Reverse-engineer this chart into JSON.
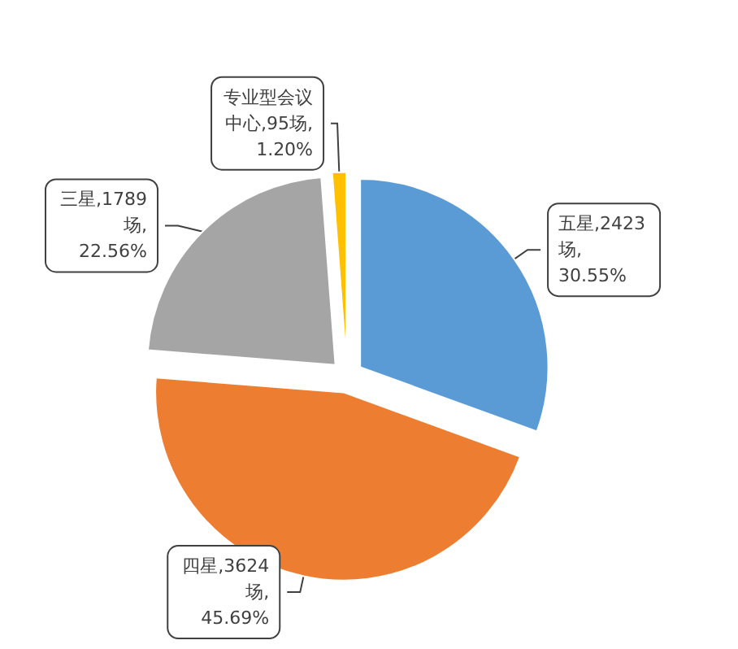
{
  "chart_data": {
    "type": "pie",
    "categories": [
      "五星",
      "四星",
      "三星",
      "专业型会议中心"
    ],
    "values": [
      2423,
      3624,
      1789,
      95
    ],
    "colors": [
      "#5b9bd5",
      "#ed7d31",
      "#a5a5a5",
      "#ffc000"
    ],
    "value_labels": [
      "2423场,30.55%",
      "3624场,45.69%",
      "1789场,22.56%",
      "95场,1.20%"
    ],
    "legend": false
  }
}
